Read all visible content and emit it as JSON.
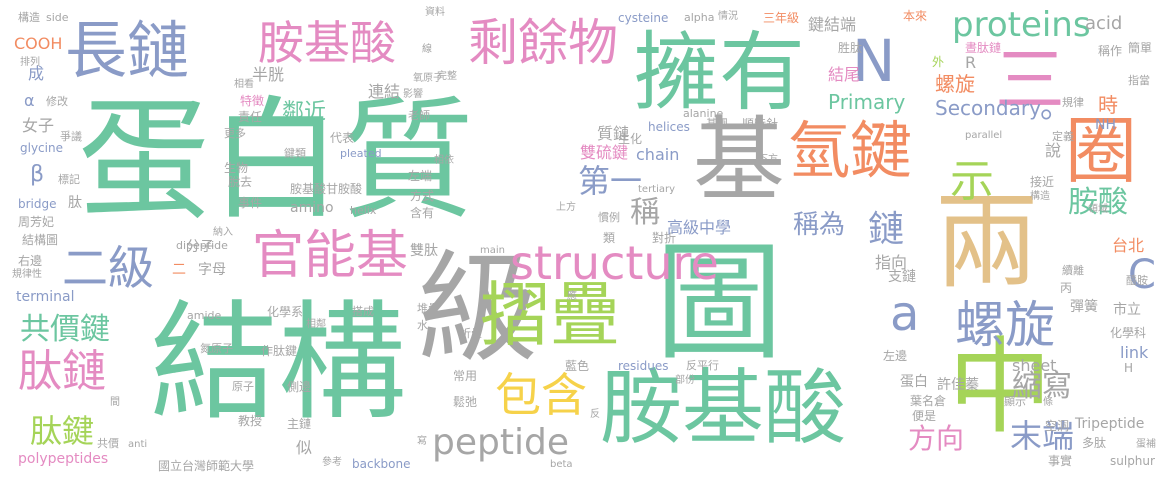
{
  "palette": {
    "teal": "#6cc6a0",
    "gray": "#a6a6a6",
    "slate": "#8a9bc7",
    "pink": "#e48bc2",
    "orange": "#f28c62",
    "green": "#a5d458",
    "gold": "#e3c189",
    "yellow": "#f6d24a"
  },
  "words": [
    {
      "text": "蛋白質",
      "color": "teal"
    },
    {
      "text": "結構",
      "color": "teal"
    },
    {
      "text": "圖",
      "color": "teal"
    },
    {
      "text": "級",
      "color": "gray"
    },
    {
      "text": "擁有",
      "color": "teal"
    },
    {
      "text": "基",
      "color": "gray"
    },
    {
      "text": "兩",
      "color": "gold"
    },
    {
      "text": "中",
      "color": "green"
    },
    {
      "text": "胺基酸",
      "color": "teal"
    },
    {
      "text": "氫鍵",
      "color": "orange"
    },
    {
      "text": "長鏈",
      "color": "slate"
    },
    {
      "text": "胺基酸",
      "color": "pink"
    },
    {
      "text": "剩餘物",
      "color": "pink"
    },
    {
      "text": "摺疊",
      "color": "green"
    },
    {
      "text": "structure",
      "color": "pink"
    },
    {
      "text": "官能基",
      "color": "pink"
    },
    {
      "text": "N",
      "color": "slate"
    },
    {
      "text": "三",
      "color": "pink"
    },
    {
      "text": "圈",
      "color": "orange"
    },
    {
      "text": "示",
      "color": "green"
    },
    {
      "text": "proteins",
      "color": "teal"
    },
    {
      "text": "螺旋",
      "color": "slate"
    },
    {
      "text": "a",
      "color": "slate"
    },
    {
      "text": "C",
      "color": "slate"
    },
    {
      "text": "二級",
      "color": "slate"
    },
    {
      "text": "共價鍵",
      "color": "teal"
    },
    {
      "text": "肽鏈",
      "color": "pink"
    },
    {
      "text": "肽鍵",
      "color": "green"
    },
    {
      "text": "包含",
      "color": "yellow"
    },
    {
      "text": "peptide",
      "color": "gray"
    },
    {
      "text": "末端",
      "color": "slate"
    },
    {
      "text": "縮寫",
      "color": "gray"
    },
    {
      "text": "方向",
      "color": "pink"
    },
    {
      "text": "胺酸",
      "color": "teal"
    },
    {
      "text": "鏈",
      "color": "slate"
    },
    {
      "text": "稱為",
      "color": "slate"
    },
    {
      "text": "稱",
      "color": "gray"
    },
    {
      "text": "第一",
      "color": "slate"
    },
    {
      "text": "Primary",
      "color": "teal"
    },
    {
      "text": "Secondary",
      "color": "slate"
    },
    {
      "text": "。",
      "color": "slate"
    },
    {
      "text": "時",
      "color": "orange"
    },
    {
      "text": "鍵結端",
      "color": "gray"
    },
    {
      "text": "結尾",
      "color": "pink"
    },
    {
      "text": "螺旋",
      "color": "orange"
    },
    {
      "text": "三年級",
      "color": "orange"
    },
    {
      "text": "cysteine",
      "color": "slate"
    },
    {
      "text": "alpha",
      "color": "gray"
    },
    {
      "text": "情況",
      "color": "gray"
    },
    {
      "text": "acid",
      "color": "gray"
    },
    {
      "text": "本來",
      "color": "orange"
    },
    {
      "text": "胜肽",
      "color": "gray"
    },
    {
      "text": "稱作",
      "color": "gray"
    },
    {
      "text": "簡單",
      "color": "gray"
    },
    {
      "text": "指當",
      "color": "gray"
    },
    {
      "text": "晝肽鏈",
      "color": "pink"
    },
    {
      "text": "規律",
      "color": "gray"
    },
    {
      "text": "NH",
      "color": "slate"
    },
    {
      "text": "R",
      "color": "gray"
    },
    {
      "text": "外",
      "color": "green"
    },
    {
      "text": "質鏈",
      "color": "gray"
    },
    {
      "text": "雙硫鍵",
      "color": "pink"
    },
    {
      "text": "生化",
      "color": "gray"
    },
    {
      "text": "chain",
      "color": "slate"
    },
    {
      "text": "helices",
      "color": "slate"
    },
    {
      "text": "基團",
      "color": "gray"
    },
    {
      "text": "順時針",
      "color": "gray"
    },
    {
      "text": "alanine",
      "color": "gray"
    },
    {
      "text": "定義",
      "color": "gray"
    },
    {
      "text": "parallel",
      "color": "gray"
    },
    {
      "text": "構造",
      "color": "gray"
    },
    {
      "text": "side",
      "color": "gray"
    },
    {
      "text": "COOH",
      "color": "orange"
    },
    {
      "text": "排列",
      "color": "gray"
    },
    {
      "text": "成",
      "color": "slate"
    },
    {
      "text": "α",
      "color": "slate"
    },
    {
      "text": "修改",
      "color": "gray"
    },
    {
      "text": "女子",
      "color": "gray"
    },
    {
      "text": "glycine",
      "color": "slate"
    },
    {
      "text": "爭議",
      "color": "gray"
    },
    {
      "text": "β",
      "color": "slate"
    },
    {
      "text": "標記",
      "color": "gray"
    },
    {
      "text": "肽",
      "color": "gray"
    },
    {
      "text": "bridge",
      "color": "slate"
    },
    {
      "text": "周芳妃",
      "color": "gray"
    },
    {
      "text": "結構圖",
      "color": "gray"
    },
    {
      "text": "右邊",
      "color": "gray"
    },
    {
      "text": "規律性",
      "color": "gray"
    },
    {
      "text": "terminal",
      "color": "slate"
    },
    {
      "text": "半胱",
      "color": "gray"
    },
    {
      "text": "連結",
      "color": "gray"
    },
    {
      "text": "特徵",
      "color": "pink"
    },
    {
      "text": "責任",
      "color": "gray"
    },
    {
      "text": "鄰近",
      "color": "teal"
    },
    {
      "text": "代表",
      "color": "gray"
    },
    {
      "text": "更多",
      "color": "gray"
    },
    {
      "text": "生物",
      "color": "gray"
    },
    {
      "text": "鍵類",
      "color": "gray"
    },
    {
      "text": "pleated",
      "color": "slate"
    },
    {
      "text": "胺基酸甘胺酸",
      "color": "gray"
    },
    {
      "text": "amino",
      "color": "gray"
    },
    {
      "text": "helix",
      "color": "gray"
    },
    {
      "text": "脫去",
      "color": "gray"
    },
    {
      "text": "事件",
      "color": "gray"
    },
    {
      "text": "方式",
      "color": "gray"
    },
    {
      "text": "含有",
      "color": "gray"
    },
    {
      "text": "左端",
      "color": "gray"
    },
    {
      "text": "相依",
      "color": "gray"
    },
    {
      "text": "上方",
      "color": "gray"
    },
    {
      "text": "類",
      "color": "gray"
    },
    {
      "text": "慣例",
      "color": "gray"
    },
    {
      "text": "對折",
      "color": "gray"
    },
    {
      "text": "高級中學",
      "color": "slate"
    },
    {
      "text": "tertiary",
      "color": "gray"
    },
    {
      "text": "下方",
      "color": "gray"
    },
    {
      "text": "接近",
      "color": "gray"
    },
    {
      "text": "構造",
      "color": "gray"
    },
    {
      "text": "領域",
      "color": "gray"
    },
    {
      "text": "說",
      "color": "gray"
    },
    {
      "text": "台北",
      "color": "orange"
    },
    {
      "text": "醯胺",
      "color": "gray"
    },
    {
      "text": "dipeptide",
      "color": "gray"
    },
    {
      "text": "納入",
      "color": "gray"
    },
    {
      "text": "二",
      "color": "orange"
    },
    {
      "text": "字母",
      "color": "gray"
    },
    {
      "text": "分子",
      "color": "gray"
    },
    {
      "text": "雙肽",
      "color": "gray"
    },
    {
      "text": "main",
      "color": "gray"
    },
    {
      "text": "指向",
      "color": "gray"
    },
    {
      "text": "支鏈",
      "color": "gray"
    },
    {
      "text": "續離",
      "color": "gray"
    },
    {
      "text": "丙",
      "color": "gray"
    },
    {
      "text": "彈簧",
      "color": "gray"
    },
    {
      "text": "化學科",
      "color": "gray"
    },
    {
      "text": "市立",
      "color": "gray"
    },
    {
      "text": "link",
      "color": "slate"
    },
    {
      "text": "H",
      "color": "gray"
    },
    {
      "text": "sheet",
      "color": "gray"
    },
    {
      "text": "蛋白",
      "color": "gray"
    },
    {
      "text": "許佳蓁",
      "color": "gray"
    },
    {
      "text": "左邊",
      "color": "gray"
    },
    {
      "text": "葉名倉",
      "color": "gray"
    },
    {
      "text": "便是",
      "color": "gray"
    },
    {
      "text": "顯示",
      "color": "gray"
    },
    {
      "text": "條",
      "color": "gray"
    },
    {
      "text": "空洞",
      "color": "gray"
    },
    {
      "text": "Tripeptide",
      "color": "gray"
    },
    {
      "text": "多肽",
      "color": "gray"
    },
    {
      "text": "事實",
      "color": "gray"
    },
    {
      "text": "sulphur",
      "color": "gray"
    },
    {
      "text": "蛋補",
      "color": "gray"
    },
    {
      "text": "化學系",
      "color": "gray"
    },
    {
      "text": "搭成",
      "color": "gray"
    },
    {
      "text": "堆疊",
      "color": "gray"
    },
    {
      "text": "amide",
      "color": "gray"
    },
    {
      "text": "作肽鍵",
      "color": "gray"
    },
    {
      "text": "氮原子",
      "color": "gray"
    },
    {
      "text": "水",
      "color": "gray"
    },
    {
      "text": "相鄰",
      "color": "gray"
    },
    {
      "text": "折疊",
      "color": "gray"
    },
    {
      "text": "藍色",
      "color": "gray"
    },
    {
      "text": "常用",
      "color": "gray"
    },
    {
      "text": "鬆弛",
      "color": "gray"
    },
    {
      "text": "residues",
      "color": "slate"
    },
    {
      "text": "反平行",
      "color": "gray"
    },
    {
      "text": "部份",
      "color": "gray"
    },
    {
      "text": "原子",
      "color": "gray"
    },
    {
      "text": "側邊",
      "color": "gray"
    },
    {
      "text": "教授",
      "color": "gray"
    },
    {
      "text": "主鏈",
      "color": "gray"
    },
    {
      "text": "anti",
      "color": "gray"
    },
    {
      "text": "共價",
      "color": "gray"
    },
    {
      "text": "polypeptides",
      "color": "pink"
    },
    {
      "text": "國立台灣師範大學",
      "color": "gray"
    },
    {
      "text": "似",
      "color": "gray"
    },
    {
      "text": "參考",
      "color": "gray"
    },
    {
      "text": "backbone",
      "color": "slate"
    },
    {
      "text": "寫",
      "color": "gray"
    },
    {
      "text": "beta",
      "color": "gray"
    },
    {
      "text": "應",
      "color": "gray"
    },
    {
      "text": "反",
      "color": "gray"
    },
    {
      "text": "氧原子",
      "color": "gray"
    },
    {
      "text": "老師",
      "color": "gray"
    },
    {
      "text": "影響",
      "color": "gray"
    },
    {
      "text": "完整",
      "color": "gray"
    },
    {
      "text": "線",
      "color": "gray"
    },
    {
      "text": "資料",
      "color": "gray"
    },
    {
      "text": "相看",
      "color": "gray"
    },
    {
      "text": "間",
      "color": "gray"
    }
  ]
}
